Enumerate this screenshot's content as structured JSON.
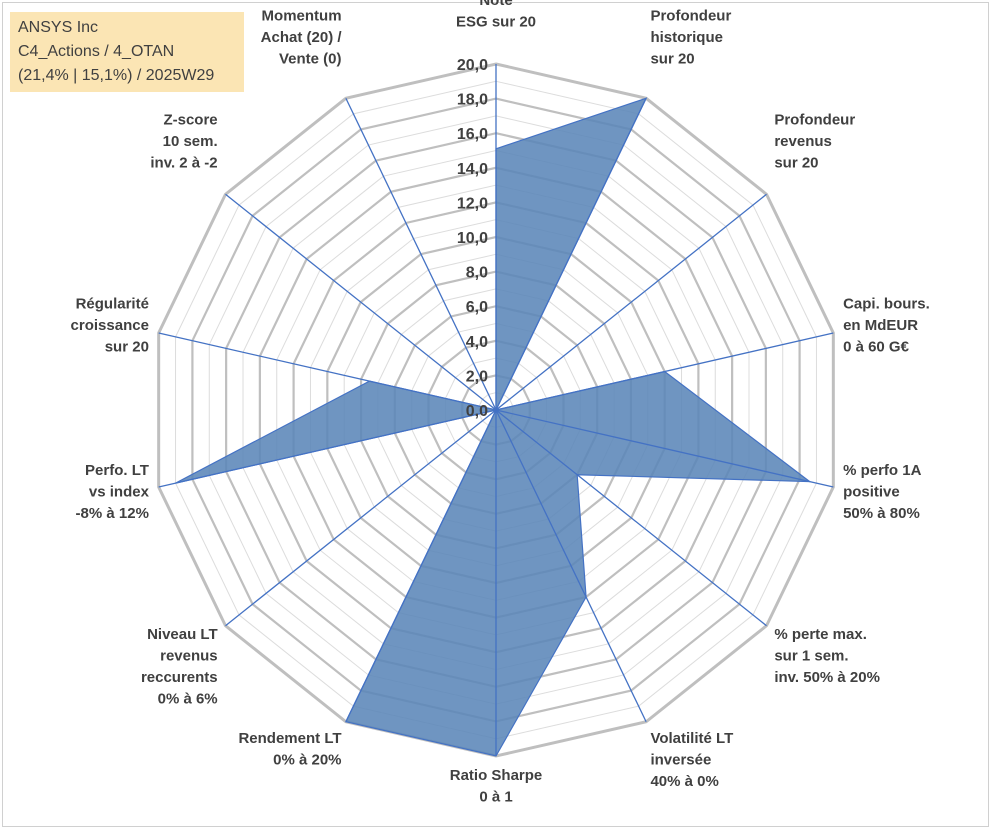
{
  "info": {
    "line1": "ANSYS Inc",
    "line2": "C4_Actions / 4_OTAN",
    "line3": "(21,4% | 15,1%) / 2025W29"
  },
  "colors": {
    "fill": "#5b86b8",
    "stroke": "#4472c4",
    "grid": "#bfbfbf",
    "box": "#fbe5b4"
  },
  "chart_data": {
    "type": "radar",
    "title": "",
    "rmin": 0,
    "rmax": 20,
    "grid_step": 1,
    "ticks": [
      "0,0",
      "2,0",
      "4,0",
      "6,0",
      "8,0",
      "10,0",
      "12,0",
      "14,0",
      "16,0",
      "18,0",
      "20,0"
    ],
    "categories": [
      [
        "Note",
        "ESG sur 20"
      ],
      [
        "Profondeur",
        "historique",
        "sur 20"
      ],
      [
        "Profondeur",
        "revenus",
        "sur 20"
      ],
      [
        "Capi. bours.",
        "en MdEUR",
        "0 à 60 G€"
      ],
      [
        "% perfo 1A",
        "positive",
        "50% à 80%"
      ],
      [
        "% perte max.",
        "sur 1 sem.",
        "inv. 50% à 20%"
      ],
      [
        "Volatilité LT",
        "inversée",
        "40% à 0%"
      ],
      [
        "Ratio Sharpe",
        "0 à 1"
      ],
      [
        "Rendement LT",
        "0% à 20%"
      ],
      [
        "Niveau LT",
        "revenus",
        "reccurents",
        "0% à 6%"
      ],
      [
        "Perfo. LT",
        "vs index",
        "-8% à 12%"
      ],
      [
        "Régularité",
        "croissance",
        "sur 20"
      ],
      [
        "Z-score",
        "10 sem.",
        "inv. 2 à -2"
      ],
      [
        "Momentum",
        "Achat (20) /",
        "Vente (0)"
      ]
    ],
    "values": [
      15.1,
      20.0,
      0.0,
      10.0,
      18.6,
      6.0,
      12.0,
      20.0,
      20.0,
      0.0,
      19.0,
      7.5,
      0.0,
      0.0
    ]
  }
}
